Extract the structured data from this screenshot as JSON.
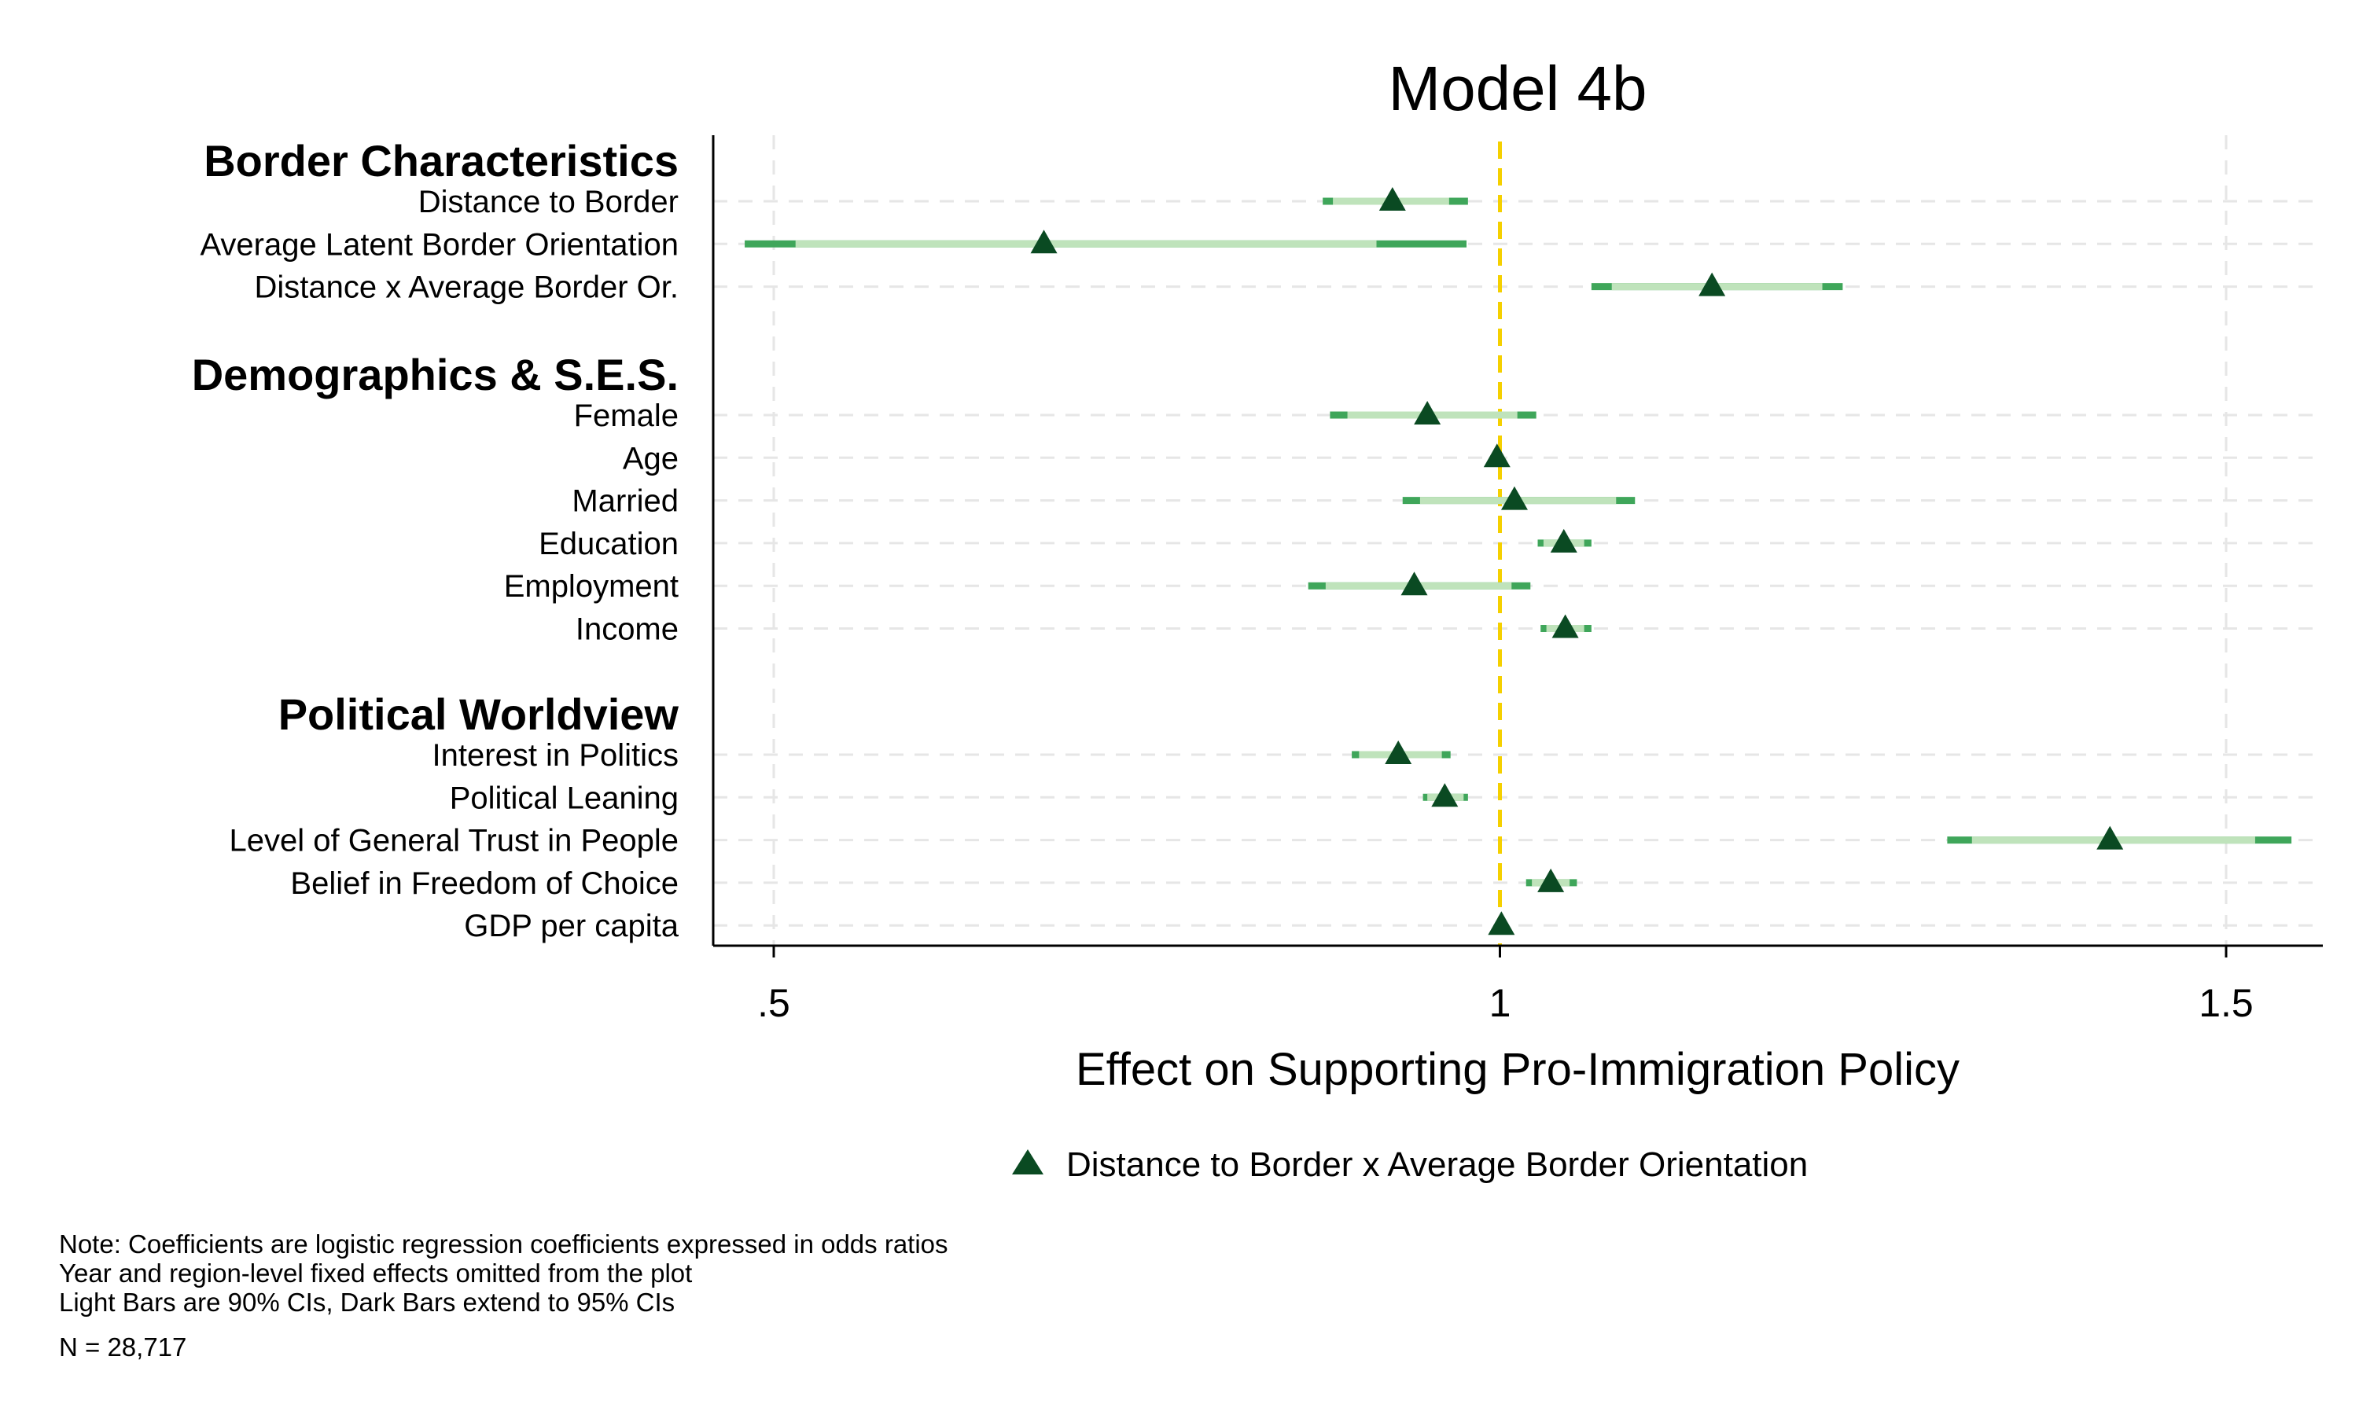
{
  "chart_data": {
    "type": "coefficient-plot",
    "title": "Model 4b",
    "xlabel": "Effect on Supporting Pro-Immigration Policy",
    "xlim": [
      0.48,
      1.565
    ],
    "xticks": [
      0.5,
      1,
      1.5
    ],
    "xtick_labels": [
      ".5",
      "1",
      "1.5"
    ],
    "reference_line": 1,
    "grid": true,
    "groups": [
      {
        "name": "Border Characteristics",
        "rows": [
          {
            "label": "Distance to Border",
            "estimate": 0.926,
            "ci90": [
              0.885,
              0.965
            ],
            "ci95": [
              0.878,
              0.978
            ]
          },
          {
            "label": "Average Latent Border Orientation",
            "estimate": 0.686,
            "ci90": [
              0.515,
              0.915
            ],
            "ci95": [
              0.48,
              0.977
            ]
          },
          {
            "label": "Distance x Average Border Or.",
            "estimate": 1.146,
            "ci90": [
              1.077,
              1.222
            ],
            "ci95": [
              1.063,
              1.236
            ]
          }
        ]
      },
      {
        "name": "Demographics & S.E.S.",
        "rows": [
          {
            "label": "Female",
            "estimate": 0.95,
            "ci90": [
              0.895,
              1.012
            ],
            "ci95": [
              0.883,
              1.025
            ]
          },
          {
            "label": "Age",
            "estimate": 0.998,
            "ci90": [
              0.997,
              1.0
            ],
            "ci95": [
              0.996,
              1.001
            ]
          },
          {
            "label": "Married",
            "estimate": 1.01,
            "ci90": [
              0.945,
              1.08
            ],
            "ci95": [
              0.933,
              1.093
            ]
          },
          {
            "label": "Education",
            "estimate": 1.044,
            "ci90": [
              1.03,
              1.058
            ],
            "ci95": [
              1.026,
              1.063
            ]
          },
          {
            "label": "Employment",
            "estimate": 0.941,
            "ci90": [
              0.88,
              1.008
            ],
            "ci95": [
              0.868,
              1.021
            ]
          },
          {
            "label": "Income",
            "estimate": 1.045,
            "ci90": [
              1.032,
              1.058
            ],
            "ci95": [
              1.028,
              1.063
            ]
          }
        ]
      },
      {
        "name": "Political Worldview",
        "rows": [
          {
            "label": "Interest in Politics",
            "estimate": 0.93,
            "ci90": [
              0.903,
              0.96
            ],
            "ci95": [
              0.898,
              0.966
            ]
          },
          {
            "label": "Political Leaning",
            "estimate": 0.962,
            "ci90": [
              0.95,
              0.975
            ],
            "ci95": [
              0.947,
              0.978
            ]
          },
          {
            "label": "Level of General Trust in People",
            "estimate": 1.42,
            "ci90": [
              1.325,
              1.52
            ],
            "ci95": [
              1.308,
              1.545
            ]
          },
          {
            "label": "Belief in Freedom of Choice",
            "estimate": 1.035,
            "ci90": [
              1.022,
              1.048
            ],
            "ci95": [
              1.018,
              1.053
            ]
          },
          {
            "label": "GDP per capita",
            "estimate": 1.001,
            "ci90": [
              0.999,
              1.003
            ],
            "ci95": [
              0.998,
              1.004
            ]
          }
        ]
      }
    ],
    "legend": {
      "position": "bottom",
      "entries": [
        "Distance to Border x Average Border Orientation"
      ]
    },
    "notes": [
      "Note: Coefficients are logistic regression coefficients expressed in odds ratios",
      "Year and region-level fixed effects omitted from the plot",
      "Light Bars are 90% CIs, Dark Bars extend to 95% CIs"
    ],
    "n_label": "N = 28,717"
  },
  "colors": {
    "marker": "#0a4a22",
    "ci90": "#bfe3bb",
    "ci95": "#3fa65a",
    "reference": "#f5d000",
    "grid": "#e6e6e6",
    "axis": "#000000"
  }
}
